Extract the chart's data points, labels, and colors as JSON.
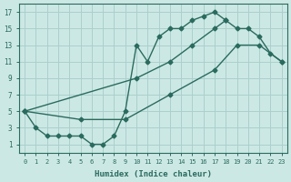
{
  "xlabel": "Humidex (Indice chaleur)",
  "bg_color": "#cce8e5",
  "line_color": "#2a6b5e",
  "grid_color": "#aad0cc",
  "xlim": [
    -0.5,
    23.5
  ],
  "ylim": [
    0,
    18
  ],
  "xticks": [
    0,
    1,
    2,
    3,
    4,
    5,
    6,
    7,
    8,
    9,
    10,
    11,
    12,
    13,
    14,
    15,
    16,
    17,
    18,
    19,
    20,
    21,
    22,
    23
  ],
  "yticks": [
    1,
    3,
    5,
    7,
    9,
    11,
    13,
    15,
    17
  ],
  "curve1_x": [
    0,
    1,
    2,
    3,
    4,
    5,
    6,
    7,
    8,
    9,
    10,
    11,
    12,
    13,
    14,
    15,
    16,
    17,
    18
  ],
  "curve1_y": [
    5,
    3,
    2,
    2,
    2,
    2,
    1,
    1,
    2,
    5,
    13,
    11,
    14,
    15,
    15,
    16,
    16.5,
    17,
    16
  ],
  "curve2_x": [
    0,
    10,
    13,
    15,
    17,
    18,
    19,
    20,
    21,
    22,
    23
  ],
  "curve2_y": [
    5,
    9,
    11,
    13,
    15,
    16,
    15,
    15,
    14,
    12,
    11
  ],
  "curve3_x": [
    0,
    5,
    9,
    13,
    17,
    19,
    21,
    23
  ],
  "curve3_y": [
    5,
    4,
    4,
    7,
    10,
    13,
    13,
    11
  ]
}
